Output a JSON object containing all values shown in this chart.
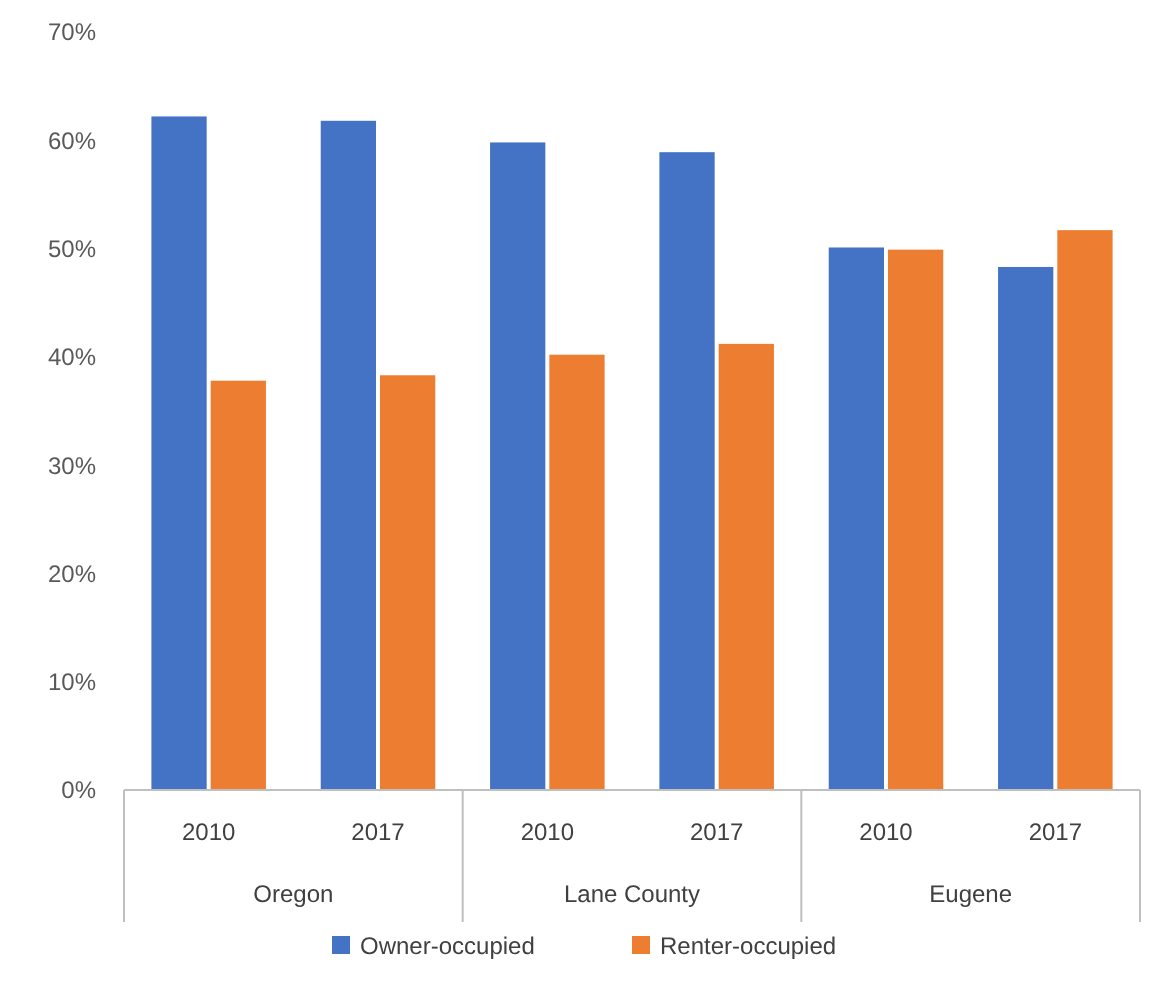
{
  "chart_data": {
    "type": "bar",
    "categories": [
      "2010",
      "2017",
      "2010",
      "2017",
      "2010",
      "2017"
    ],
    "series": [
      {
        "name": "Owner-occupied",
        "color": "#4472c4",
        "values": [
          62.2,
          61.8,
          59.8,
          58.9,
          50.1,
          48.3
        ]
      },
      {
        "name": "Renter-occupied",
        "color": "#ed7d31",
        "values": [
          37.8,
          38.3,
          40.2,
          41.2,
          49.9,
          51.7
        ]
      }
    ],
    "annotations": [
      "Oregon",
      "Lane County",
      "Eugene"
    ],
    "ylim": [
      0,
      70
    ],
    "yticks": [
      {
        "value": 0,
        "label": "0%"
      },
      {
        "value": 10,
        "label": "10%"
      },
      {
        "value": 20,
        "label": "20%"
      },
      {
        "value": 30,
        "label": "30%"
      },
      {
        "value": 40,
        "label": "40%"
      },
      {
        "value": 50,
        "label": "50%"
      },
      {
        "value": 60,
        "label": "60%"
      },
      {
        "value": 70,
        "label": "70%"
      }
    ],
    "legend": "bottom"
  }
}
